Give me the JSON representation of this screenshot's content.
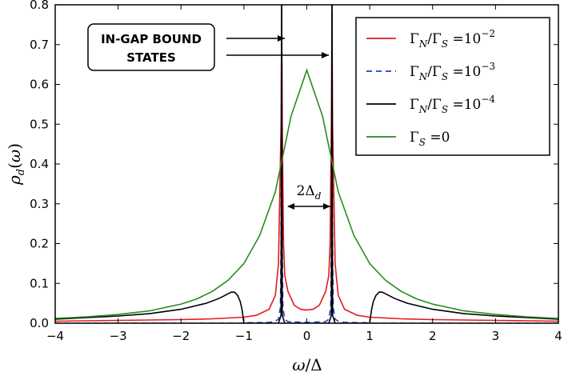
{
  "chart_data": {
    "type": "line",
    "xlabel": "ω/Δ",
    "ylabel": "ρ_d(ω)",
    "xlim": [
      -4,
      4
    ],
    "ylim": [
      0,
      0.8
    ],
    "xticks": [
      "−4",
      "−3",
      "−2",
      "−1",
      "0",
      "1",
      "2",
      "3",
      "4"
    ],
    "yticks": [
      "0.0",
      "0.1",
      "0.2",
      "0.3",
      "0.4",
      "0.5",
      "0.6",
      "0.7",
      "0.8"
    ],
    "legend_position": "top-right",
    "series": [
      {
        "name": "Γ_N/Γ_S = 10^−2",
        "color": "#e41a1c",
        "style": "solid",
        "x": [
          -4,
          -3,
          -2,
          -1.5,
          -1,
          -0.8,
          -0.6,
          -0.5,
          -0.45,
          -0.41,
          -0.4,
          -0.39,
          -0.37,
          -0.35,
          -0.3,
          -0.2,
          -0.1,
          0,
          0.1,
          0.2,
          0.3,
          0.35,
          0.37,
          0.39,
          0.4,
          0.41,
          0.45,
          0.5,
          0.6,
          0.8,
          1,
          1.5,
          2,
          3,
          4
        ],
        "y": [
          0.005,
          0.007,
          0.009,
          0.011,
          0.015,
          0.02,
          0.035,
          0.07,
          0.15,
          0.5,
          0.8,
          0.5,
          0.2,
          0.12,
          0.08,
          0.045,
          0.035,
          0.033,
          0.035,
          0.045,
          0.08,
          0.12,
          0.2,
          0.5,
          0.8,
          0.5,
          0.15,
          0.07,
          0.035,
          0.02,
          0.015,
          0.011,
          0.009,
          0.007,
          0.005
        ]
      },
      {
        "name": "Γ_N/Γ_S = 10^−3",
        "color": "#1f3fcf",
        "style": "dashed",
        "x": [
          -4,
          -1.05,
          -1,
          -0.6,
          -0.5,
          -0.45,
          -0.42,
          -0.41,
          -0.4,
          -0.39,
          -0.38,
          -0.35,
          -0.3,
          0,
          0.3,
          0.35,
          0.38,
          0.39,
          0.4,
          0.41,
          0.42,
          0.45,
          0.5,
          0.6,
          1,
          1.05,
          4
        ],
        "y": [
          0.0,
          0.0,
          0.001,
          0.002,
          0.005,
          0.01,
          0.04,
          0.2,
          0.8,
          0.2,
          0.04,
          0.01,
          0.004,
          0.002,
          0.004,
          0.01,
          0.04,
          0.2,
          0.8,
          0.2,
          0.04,
          0.01,
          0.005,
          0.002,
          0.001,
          0.0,
          0.0
        ]
      },
      {
        "name": "Γ_N/Γ_S = 10^−4",
        "color": "#000000",
        "style": "solid",
        "x": [
          -4,
          -3.5,
          -3,
          -2.5,
          -2,
          -1.6,
          -1.4,
          -1.3,
          -1.2,
          -1.15,
          -1.1,
          -1.06,
          -1.03,
          -1.0,
          -0.45,
          -0.41,
          -0.4,
          -0.39,
          -0.35,
          0.35,
          0.39,
          0.4,
          0.41,
          0.45,
          1.0,
          1.03,
          1.06,
          1.1,
          1.15,
          1.2,
          1.3,
          1.4,
          1.6,
          2,
          2.5,
          3,
          3.5,
          4
        ],
        "y": [
          0.01,
          0.014,
          0.018,
          0.024,
          0.035,
          0.05,
          0.062,
          0.07,
          0.078,
          0.078,
          0.07,
          0.055,
          0.035,
          0.0,
          0.0,
          0.02,
          0.8,
          0.02,
          0.0,
          0.0,
          0.02,
          0.8,
          0.02,
          0.0,
          0.0,
          0.035,
          0.055,
          0.07,
          0.078,
          0.078,
          0.07,
          0.062,
          0.05,
          0.035,
          0.024,
          0.018,
          0.014,
          0.01
        ]
      },
      {
        "name": "Γ_S = 0",
        "color": "#2a8a1f",
        "style": "solid",
        "x": [
          -4,
          -3.5,
          -3,
          -2.5,
          -2,
          -1.75,
          -1.5,
          -1.25,
          -1,
          -0.75,
          -0.5,
          -0.25,
          0,
          0.25,
          0.5,
          0.75,
          1,
          1.25,
          1.5,
          1.75,
          2,
          2.5,
          3,
          3.5,
          4
        ],
        "y": [
          0.012,
          0.016,
          0.022,
          0.031,
          0.048,
          0.061,
          0.08,
          0.108,
          0.15,
          0.22,
          0.33,
          0.52,
          0.636,
          0.52,
          0.33,
          0.22,
          0.15,
          0.108,
          0.08,
          0.061,
          0.048,
          0.031,
          0.022,
          0.016,
          0.012
        ]
      }
    ],
    "annotations": {
      "bound_states_label_1": "IN-GAP BOUND",
      "bound_states_label_2": "STATES",
      "gap_label": "2Δ_d"
    }
  },
  "legend_texts": [
    "ΓN/ΓS = 10−2",
    "ΓN/ΓS = 10−3",
    "ΓN/ΓS = 10−4",
    "ΓS = 0"
  ]
}
